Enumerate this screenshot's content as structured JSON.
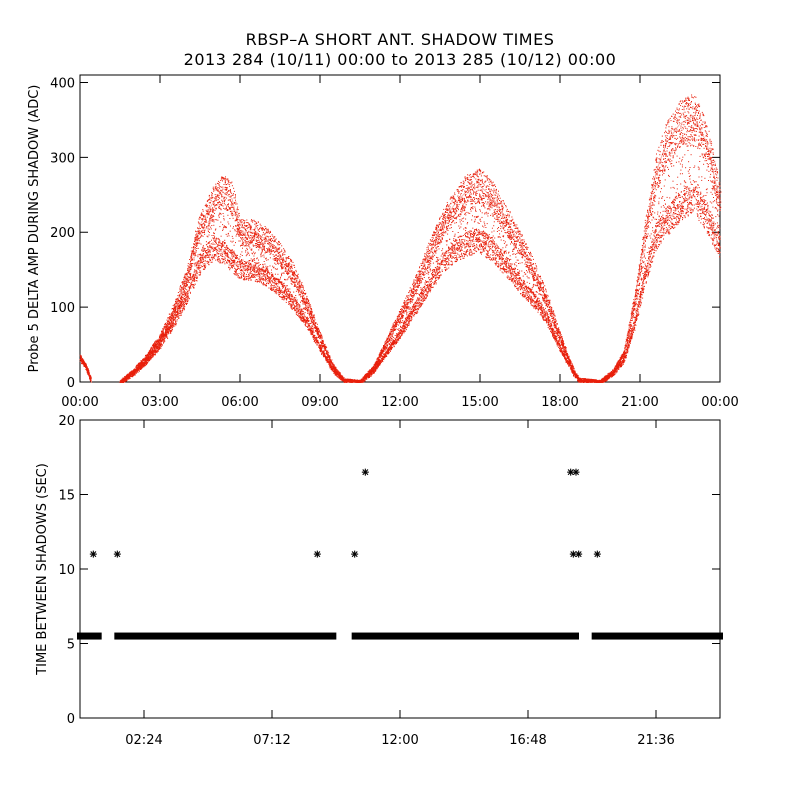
{
  "header": {
    "title": "RBSP–A SHORT ANT. SHADOW TIMES",
    "subtitle": "2013 284 (10/11) 00:00 to 2013 285 (10/12) 00:00"
  },
  "colors": {
    "scatter": "#e8200c",
    "axis": "#000000",
    "marker": "#000000"
  },
  "chart_data": [
    {
      "type": "scatter",
      "title": "RBSP–A SHORT ANT. SHADOW TIMES",
      "ylabel": "Probe 5 DELTA AMP DURING SHADOW (ADC)",
      "xlabel": "",
      "xlim_hours": [
        0,
        24
      ],
      "ylim": [
        0,
        410
      ],
      "x_tick_labels": [
        "00:00",
        "03:00",
        "06:00",
        "09:00",
        "12:00",
        "15:00",
        "18:00",
        "21:00",
        "00:00"
      ],
      "x_tick_hours": [
        0,
        3,
        6,
        9,
        12,
        15,
        18,
        21,
        24
      ],
      "y_tick_labels": [
        "0",
        "100",
        "200",
        "300",
        "400"
      ],
      "y_tick_values": [
        0,
        100,
        200,
        300,
        400
      ],
      "series": [
        {
          "name": "upper band",
          "points": [
            [
              0.0,
              35
            ],
            [
              0.1,
              28
            ],
            [
              0.25,
              18
            ],
            [
              0.4,
              3
            ],
            [
              1.5,
              0
            ],
            [
              2.0,
              15
            ],
            [
              2.5,
              35
            ],
            [
              3.0,
              60
            ],
            [
              3.5,
              95
            ],
            [
              4.0,
              140
            ],
            [
              4.5,
              210
            ],
            [
              5.0,
              240
            ],
            [
              5.3,
              255
            ],
            [
              5.7,
              245
            ],
            [
              6.0,
              200
            ],
            [
              6.5,
              200
            ],
            [
              7.0,
              190
            ],
            [
              7.5,
              170
            ],
            [
              8.0,
              145
            ],
            [
              8.5,
              105
            ],
            [
              9.0,
              60
            ],
            [
              9.5,
              20
            ],
            [
              9.9,
              2
            ],
            [
              10.5,
              0
            ],
            [
              11.0,
              20
            ],
            [
              11.5,
              55
            ],
            [
              12.0,
              90
            ],
            [
              12.5,
              125
            ],
            [
              13.0,
              165
            ],
            [
              13.5,
              205
            ],
            [
              14.0,
              235
            ],
            [
              14.5,
              255
            ],
            [
              15.0,
              262
            ],
            [
              15.5,
              245
            ],
            [
              16.0,
              215
            ],
            [
              16.5,
              185
            ],
            [
              17.0,
              150
            ],
            [
              17.5,
              110
            ],
            [
              18.0,
              60
            ],
            [
              18.5,
              15
            ],
            [
              18.7,
              3
            ],
            [
              19.5,
              0
            ],
            [
              20.0,
              15
            ],
            [
              20.4,
              40
            ],
            [
              20.8,
              110
            ],
            [
              21.2,
              200
            ],
            [
              21.6,
              280
            ],
            [
              22.0,
              320
            ],
            [
              22.5,
              345
            ],
            [
              23.0,
              355
            ],
            [
              23.5,
              320
            ],
            [
              24.0,
              240
            ]
          ]
        },
        {
          "name": "lower band",
          "points": [
            [
              0.0,
              30
            ],
            [
              0.2,
              22
            ],
            [
              0.4,
              3
            ],
            [
              1.5,
              0
            ],
            [
              2.0,
              12
            ],
            [
              2.5,
              28
            ],
            [
              3.0,
              50
            ],
            [
              3.5,
              80
            ],
            [
              4.0,
              115
            ],
            [
              4.5,
              160
            ],
            [
              5.0,
              180
            ],
            [
              5.5,
              170
            ],
            [
              6.0,
              150
            ],
            [
              6.5,
              150
            ],
            [
              7.0,
              140
            ],
            [
              7.5,
              125
            ],
            [
              8.0,
              105
            ],
            [
              8.5,
              80
            ],
            [
              9.0,
              45
            ],
            [
              9.5,
              15
            ],
            [
              9.9,
              2
            ],
            [
              10.5,
              0
            ],
            [
              11.0,
              15
            ],
            [
              11.5,
              40
            ],
            [
              12.0,
              65
            ],
            [
              12.5,
              95
            ],
            [
              13.0,
              125
            ],
            [
              13.5,
              155
            ],
            [
              14.0,
              175
            ],
            [
              14.5,
              185
            ],
            [
              15.0,
              190
            ],
            [
              15.5,
              175
            ],
            [
              16.0,
              155
            ],
            [
              16.5,
              130
            ],
            [
              17.0,
              110
            ],
            [
              17.5,
              85
            ],
            [
              18.0,
              45
            ],
            [
              18.5,
              12
            ],
            [
              18.7,
              3
            ],
            [
              19.5,
              0
            ],
            [
              20.0,
              12
            ],
            [
              20.4,
              30
            ],
            [
              20.8,
              80
            ],
            [
              21.2,
              145
            ],
            [
              21.6,
              195
            ],
            [
              22.0,
              215
            ],
            [
              22.5,
              235
            ],
            [
              23.0,
              250
            ],
            [
              23.5,
              220
            ],
            [
              24.0,
              180
            ]
          ]
        }
      ]
    },
    {
      "type": "scatter",
      "ylabel": "TIME BETWEEN SHADOWS (SEC)",
      "xlabel": "",
      "xlim_hours": [
        0,
        24
      ],
      "ylim": [
        0,
        20
      ],
      "x_tick_labels": [
        "02:24",
        "07:12",
        "12:00",
        "16:48",
        "21:36"
      ],
      "x_tick_hours": [
        2.4,
        7.2,
        12.0,
        16.8,
        21.6
      ],
      "y_tick_labels": [
        "0",
        "5",
        "10",
        "15",
        "20"
      ],
      "y_tick_values": [
        0,
        5,
        10,
        15,
        20
      ],
      "baseline_segments": [
        {
          "start": 0.0,
          "end": 0.7,
          "value": 5.5
        },
        {
          "start": 1.4,
          "end": 9.5,
          "value": 5.5
        },
        {
          "start": 10.3,
          "end": 18.6,
          "value": 5.5
        },
        {
          "start": 19.3,
          "end": 24.0,
          "value": 5.5
        }
      ],
      "outliers": [
        [
          0.5,
          11.0
        ],
        [
          1.4,
          11.0
        ],
        [
          8.9,
          11.0
        ],
        [
          10.3,
          11.0
        ],
        [
          10.7,
          16.5
        ],
        [
          18.4,
          16.5
        ],
        [
          18.6,
          16.5
        ],
        [
          18.5,
          11.0
        ],
        [
          18.7,
          11.0
        ],
        [
          19.4,
          11.0
        ]
      ]
    }
  ]
}
